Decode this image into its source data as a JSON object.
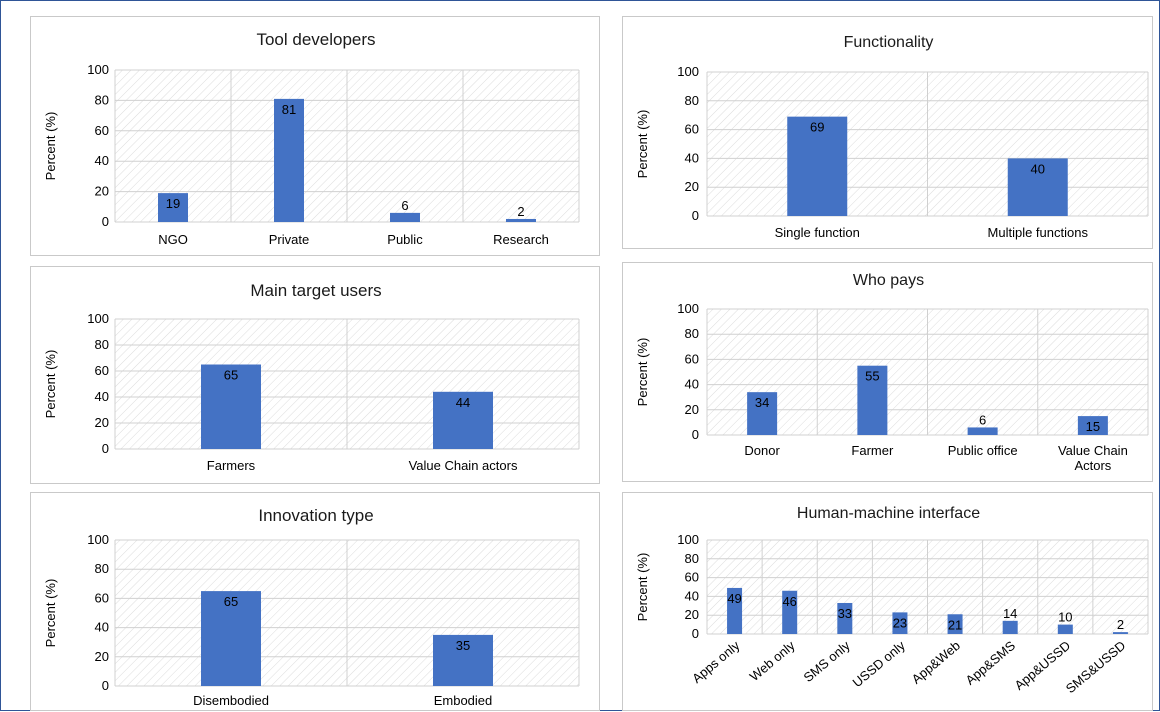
{
  "colors": {
    "bar": "#4472c4",
    "grid": "#d0d0d0",
    "hatch": "#dcdcdc",
    "frame": "#2f5597"
  },
  "chart_data": [
    {
      "id": "tool-developers",
      "type": "bar",
      "title": "Tool developers",
      "ylabel": "Percent (%)",
      "xlabel": "",
      "categories": [
        "NGO",
        "Private",
        "Public",
        "Research"
      ],
      "values": [
        19,
        81,
        6,
        2
      ],
      "data_labels": [
        "19",
        "81",
        "6",
        "2"
      ],
      "ylim": [
        0,
        100
      ],
      "yticks": [
        0,
        20,
        40,
        60,
        80,
        100
      ],
      "grid": true
    },
    {
      "id": "functionality",
      "type": "bar",
      "title": "Functionality",
      "ylabel": "Percent (%)",
      "xlabel": "",
      "categories": [
        "Single function",
        "Multiple functions"
      ],
      "values": [
        69,
        40
      ],
      "data_labels": [
        "69",
        "40"
      ],
      "ylim": [
        0,
        100
      ],
      "yticks": [
        0,
        20,
        40,
        60,
        80,
        100
      ],
      "grid": true
    },
    {
      "id": "main-target-users",
      "type": "bar",
      "title": "Main target users",
      "ylabel": "Percent (%)",
      "xlabel": "",
      "categories": [
        "Farmers",
        "Value Chain actors"
      ],
      "values": [
        65,
        44
      ],
      "data_labels": [
        "65",
        "44"
      ],
      "ylim": [
        0,
        100
      ],
      "yticks": [
        0,
        20,
        40,
        60,
        80,
        100
      ],
      "grid": true
    },
    {
      "id": "who-pays",
      "type": "bar",
      "title": "Who pays",
      "ylabel": "Percent (%)",
      "xlabel": "",
      "categories": [
        "Donor",
        "Farmer",
        "Public office",
        "Value Chain Actors"
      ],
      "values": [
        34,
        55,
        6,
        15
      ],
      "data_labels": [
        "34",
        "55",
        "6",
        "15"
      ],
      "ylim": [
        0,
        100
      ],
      "yticks": [
        0,
        20,
        40,
        60,
        80,
        100
      ],
      "grid": true
    },
    {
      "id": "innovation-type",
      "type": "bar",
      "title": "Innovation type",
      "ylabel": "Percent (%)",
      "xlabel": "",
      "categories": [
        "Disembodied",
        "Embodied"
      ],
      "values": [
        65,
        35
      ],
      "data_labels": [
        "65",
        "35"
      ],
      "ylim": [
        0,
        100
      ],
      "yticks": [
        0,
        20,
        40,
        60,
        80,
        100
      ],
      "grid": true
    },
    {
      "id": "human-machine-interface",
      "type": "bar",
      "title": "Human-machine interface",
      "ylabel": "Percent (%)",
      "xlabel": "",
      "categories": [
        "Apps only",
        "Web only",
        "SMS only",
        "USSD only",
        "App&Web",
        "App&SMS",
        "App&USSD",
        "SMS&USSD"
      ],
      "values": [
        49,
        46,
        33,
        23,
        21,
        14,
        10,
        2
      ],
      "data_labels": [
        "49",
        "46",
        "33",
        "23",
        "21",
        "14",
        "10",
        "2"
      ],
      "ylim": [
        0,
        100
      ],
      "yticks": [
        0,
        20,
        40,
        60,
        80,
        100
      ],
      "grid": true
    }
  ]
}
